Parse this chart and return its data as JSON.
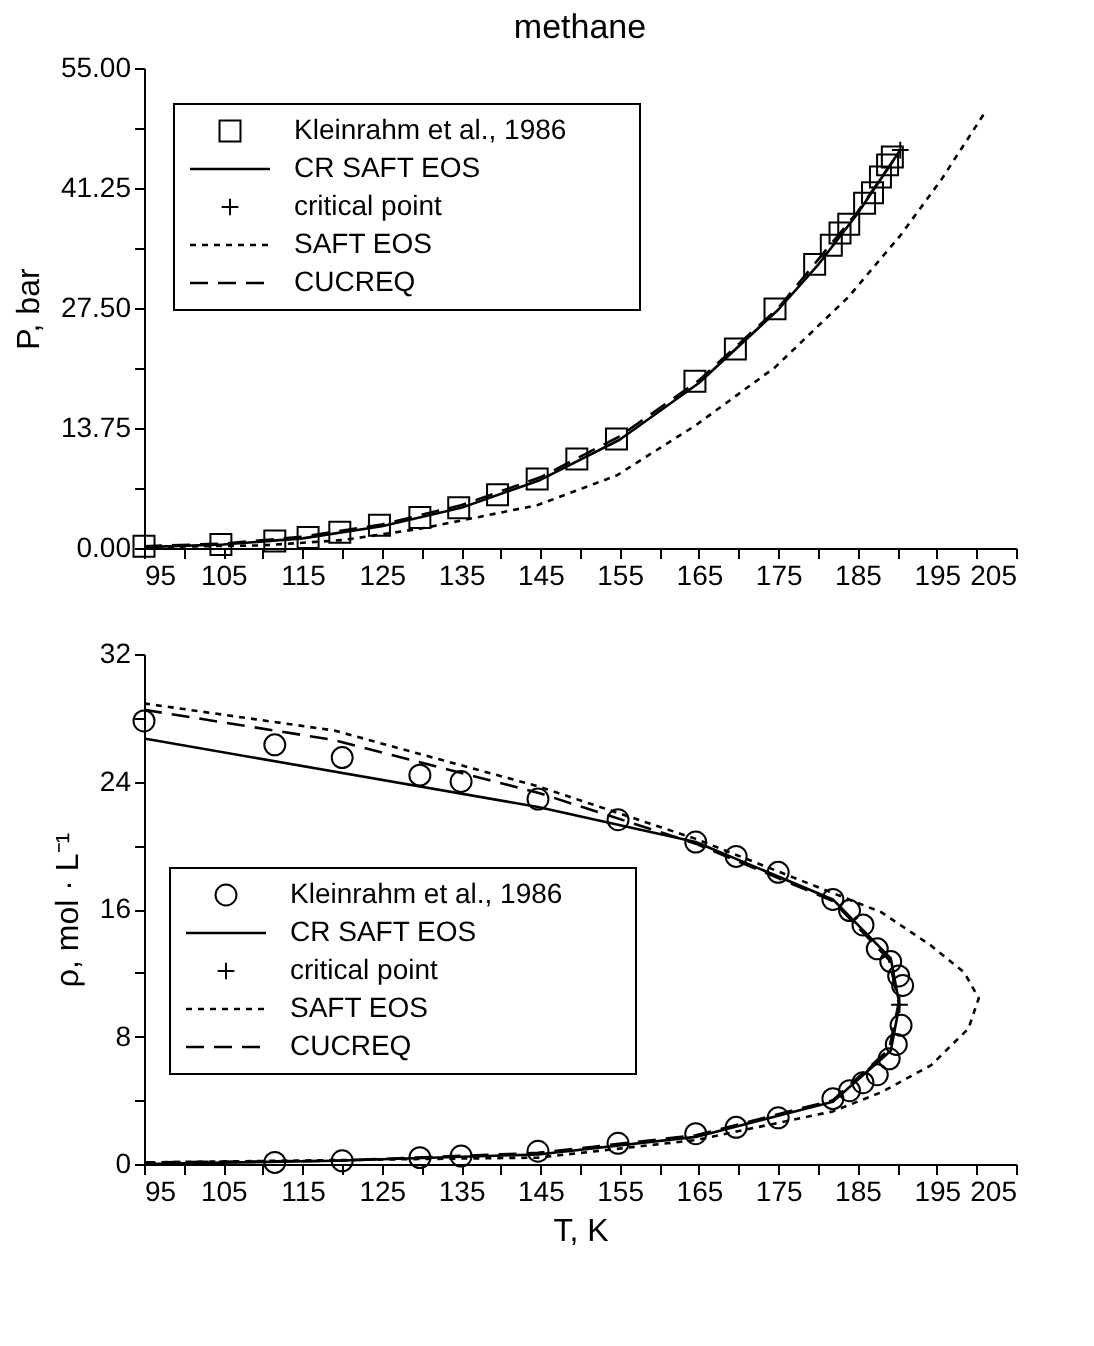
{
  "chart_data": [
    {
      "type": "line",
      "title": "methane",
      "ylabel": "P, bar",
      "legend": "top left",
      "xlim": [
        95,
        205
      ],
      "ylim": [
        0,
        55
      ],
      "xticks": [
        95,
        {
          "value": 100,
          "label": null
        },
        105,
        {
          "value": 110,
          "label": null
        },
        115,
        {
          "value": 120,
          "label": null
        },
        125,
        {
          "value": 130,
          "label": null
        },
        135,
        {
          "value": 140,
          "label": null
        },
        145,
        {
          "value": 150,
          "label": null
        },
        155,
        {
          "value": 160,
          "label": null
        },
        165,
        {
          "value": 170,
          "label": null
        },
        175,
        {
          "value": 180,
          "label": null
        },
        185,
        {
          "value": 190,
          "label": null
        },
        195,
        {
          "value": 200,
          "label": null
        },
        205
      ],
      "yticks": [
        {
          "value": 0,
          "label": "0.00"
        },
        {
          "value": 6.875,
          "label": null
        },
        13.75,
        {
          "value": 20.625,
          "label": null
        },
        {
          "value": 27.5,
          "label": "27.50"
        },
        {
          "value": 34.375,
          "label": null
        },
        41.25,
        {
          "value": 48.125,
          "label": null
        },
        {
          "value": 55,
          "label": "55.00"
        }
      ],
      "series": [
        {
          "name": "Kleinrahm et al., 1986",
          "type": "scatter",
          "marker": "square",
          "color": "#000000",
          "x": [
            95,
            104.7,
            111.5,
            115.7,
            119.7,
            124.7,
            129.8,
            134.7,
            139.6,
            144.6,
            149.6,
            154.6,
            164.5,
            169.6,
            174.6,
            179.6,
            181.7,
            182.8,
            183.9,
            185.9,
            186.9,
            187.9,
            188.8,
            189.4
          ],
          "values": [
            0.2,
            0.4,
            0.8,
            1.2,
            1.8,
            2.6,
            3.5,
            4.6,
            6.1,
            7.9,
            10.2,
            12.5,
            19.1,
            22.8,
            27.4,
            32.5,
            34.7,
            36.1,
            37.1,
            39.5,
            40.7,
            42.5,
            43.9,
            44.8
          ]
        },
        {
          "name": "CR SAFT EOS",
          "line_style": "solid",
          "color": "#000000",
          "x": [
            95,
            105,
            115,
            125,
            135,
            145,
            155,
            165,
            175,
            180,
            185,
            190.4
          ],
          "values": [
            0.1,
            0.4,
            1.1,
            2.5,
            4.6,
            7.8,
            12.4,
            18.9,
            27.3,
            32.4,
            38.3,
            45.6
          ]
        },
        {
          "name": "critical point",
          "type": "scatter",
          "marker": "cross",
          "color": "#000000",
          "x": [
            190.4
          ],
          "values": [
            45.6
          ]
        },
        {
          "name": "SAFT EOS",
          "line_style": "dotted",
          "color": "#000000",
          "x": [
            95,
            110,
            120,
            129.8,
            144.6,
            154.6,
            164.5,
            174.6,
            183.9,
            190.4,
            195.5,
            201
          ],
          "values": [
            0.1,
            0.3,
            0.9,
            2.2,
            4.9,
            8.3,
            14.0,
            20.7,
            28.8,
            35.8,
            42.1,
            49.8
          ]
        },
        {
          "name": "CUCREQ",
          "line_style": "dashed",
          "color": "#000000",
          "x": [
            95,
            105,
            115,
            125,
            135,
            145,
            155,
            165,
            175,
            185,
            190
          ],
          "values": [
            0.2,
            0.5,
            1.3,
            2.7,
            4.9,
            8.1,
            12.8,
            19.2,
            27.5,
            38.5,
            45.0
          ]
        }
      ]
    },
    {
      "type": "line",
      "xlabel": "T, K",
      "ylabel": "ρ, mol · L⁻¹",
      "legend": "left",
      "xlim": [
        95,
        205
      ],
      "ylim": [
        0,
        32
      ],
      "xticks": [
        95,
        {
          "value": 100,
          "label": null
        },
        105,
        {
          "value": 110,
          "label": null
        },
        115,
        {
          "value": 120,
          "label": null
        },
        125,
        {
          "value": 130,
          "label": null
        },
        135,
        {
          "value": 140,
          "label": null
        },
        145,
        {
          "value": 150,
          "label": null
        },
        155,
        {
          "value": 160,
          "label": null
        },
        165,
        {
          "value": 170,
          "label": null
        },
        175,
        {
          "value": 180,
          "label": null
        },
        185,
        {
          "value": 190,
          "label": null
        },
        195,
        {
          "value": 200,
          "label": null
        },
        205
      ],
      "yticks": [
        0,
        {
          "value": 4,
          "label": null
        },
        8,
        {
          "value": 12,
          "label": null
        },
        16,
        {
          "value": 20,
          "label": null
        },
        24,
        {
          "value": 28,
          "label": null
        },
        32
      ],
      "series": [
        {
          "name": "Kleinrahm et al., 1986",
          "type": "scatter",
          "marker": "circle",
          "color": "#000000",
          "x": [
            95,
            111.5,
            120,
            129.8,
            135,
            144.7,
            154.8,
            164.6,
            169.7,
            175,
            181.9,
            184,
            185.7,
            187.5,
            189.2,
            190.2,
            190.7,
            190.5,
            189.9,
            189,
            187.5,
            185.7,
            184,
            181.9,
            175,
            169.7,
            164.6,
            154.8,
            144.7,
            135,
            129.8,
            120,
            111.5
          ],
          "values": [
            27.8,
            26.3,
            25.5,
            24.4,
            24.0,
            22.9,
            21.6,
            20.2,
            19.3,
            18.3,
            16.6,
            15.9,
            15.0,
            13.5,
            12.7,
            11.8,
            11.2,
            8.7,
            7.5,
            6.6,
            5.6,
            5.1,
            4.6,
            4.1,
            2.9,
            2.3,
            1.9,
            1.3,
            0.8,
            0.5,
            0.4,
            0.2,
            0.1
          ]
        },
        {
          "name": "CR SAFT EOS",
          "line_style": "solid",
          "color": "#000000",
          "x": [
            95,
            144.7,
            164.6,
            181.9,
            189.2,
            190.3,
            189.2,
            181.9,
            164.6,
            144.7,
            119,
            95
          ],
          "values": [
            26.7,
            22.4,
            20.2,
            16.6,
            12.9,
            10.0,
            7.1,
            3.9,
            1.7,
            0.6,
            0.2,
            0.0
          ]
        },
        {
          "name": "critical point",
          "type": "scatter",
          "marker": "cross",
          "color": "#000000",
          "x": [
            190.3
          ],
          "values": [
            10.0
          ]
        },
        {
          "name": "SAFT EOS",
          "line_style": "dotted",
          "color": "#000000",
          "x": [
            95,
            119,
            144.7,
            164.6,
            181.9,
            188,
            194.3,
            198.5,
            200.3,
            199,
            194.3,
            188,
            181.9,
            164.6,
            144.7,
            95
          ],
          "values": [
            28.9,
            27.2,
            23.7,
            20.4,
            17.0,
            15.8,
            13.7,
            12.0,
            10.4,
            8.5,
            6.2,
            4.5,
            3.3,
            1.5,
            0.4,
            0.1
          ]
        },
        {
          "name": "CUCREQ",
          "line_style": "dashed",
          "color": "#000000",
          "x": [
            95,
            119,
            144.7,
            164.6,
            181.9,
            189,
            190.2,
            189,
            181.9,
            164.6,
            144.7,
            119,
            95
          ],
          "values": [
            28.5,
            26.6,
            23.3,
            20.1,
            16.5,
            12.8,
            10.1,
            7.2,
            4.0,
            1.8,
            0.7,
            0.2,
            0.1
          ]
        }
      ]
    }
  ]
}
